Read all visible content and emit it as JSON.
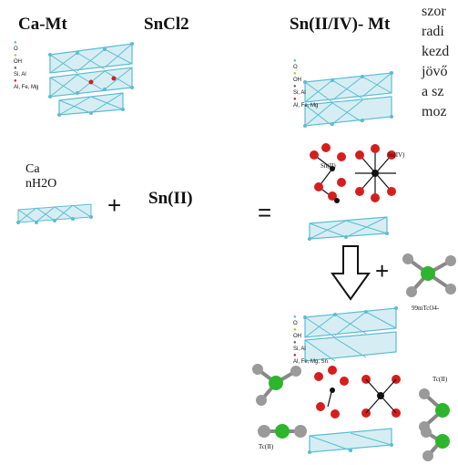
{
  "headers": {
    "ca_mt": "Ca-Mt",
    "sncl2": "SnCl2",
    "sn_mt": "Sn(II/IV)- Mt"
  },
  "reactants": {
    "ca": "Ca",
    "water": "nH2O",
    "sn2": "Sn(II)"
  },
  "operators": {
    "plus1": "+",
    "equals": "=",
    "plus2": "+"
  },
  "legend_items": [
    "O",
    "OH",
    "Si, Al",
    "Al, Fe, Mg"
  ],
  "legend_items_sn": [
    "O",
    "OH",
    "Si, Al",
    "Al, Fe, Mg, Sn"
  ],
  "inner_labels": {
    "sn_ii": "Sn(II)",
    "sn_iv": "Sn(IV)",
    "tco4": "99mTcO4-",
    "tc_ii_a": "Tc(II)",
    "tc_ii_b": "Tc(II)"
  },
  "side_text": [
    "szor",
    "radi",
    "kezd",
    "jövő",
    "a sz",
    "moz"
  ],
  "colors": {
    "lattice": "#5bbcd3",
    "lattice_fill": "#d6eef3",
    "oxygen": "#d61e1e",
    "tin": "#111111",
    "tc": "#2db52d",
    "grey_atom": "#9a9a9a"
  }
}
